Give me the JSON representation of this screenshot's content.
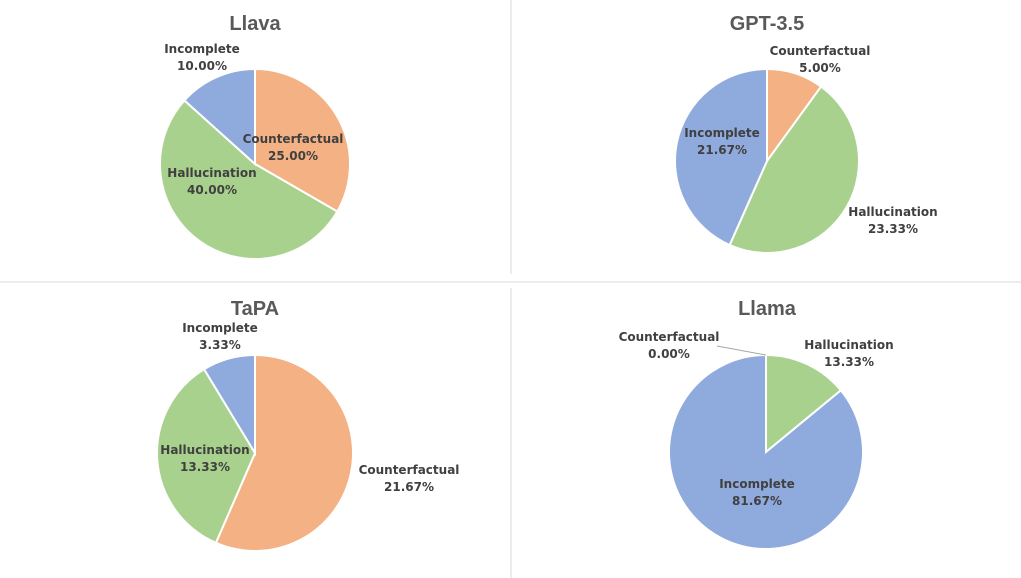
{
  "colors": {
    "Counterfactual": "#f4b183",
    "Hallucination": "#a9d18e",
    "Incomplete": "#8faadc"
  },
  "chart_data": [
    {
      "type": "pie",
      "title": "Llava",
      "slices": [
        {
          "label": "Counterfactual",
          "value": 25.0,
          "value_text": "25.00%"
        },
        {
          "label": "Hallucination",
          "value": 40.0,
          "value_text": "40.00%"
        },
        {
          "label": "Incomplete",
          "value": 10.0,
          "value_text": "10.00%"
        }
      ]
    },
    {
      "type": "pie",
      "title": "GPT-3.5",
      "slices": [
        {
          "label": "Counterfactual",
          "value": 5.0,
          "value_text": "5.00%"
        },
        {
          "label": "Hallucination",
          "value": 23.33,
          "value_text": "23.33%"
        },
        {
          "label": "Incomplete",
          "value": 21.67,
          "value_text": "21.67%"
        }
      ]
    },
    {
      "type": "pie",
      "title": "TaPA",
      "slices": [
        {
          "label": "Counterfactual",
          "value": 21.67,
          "value_text": "21.67%"
        },
        {
          "label": "Hallucination",
          "value": 13.33,
          "value_text": "13.33%"
        },
        {
          "label": "Incomplete",
          "value": 3.33,
          "value_text": "3.33%"
        }
      ]
    },
    {
      "type": "pie",
      "title": "Llama",
      "slices": [
        {
          "label": "Counterfactual",
          "value": 0.0,
          "value_text": "0.00%"
        },
        {
          "label": "Hallucination",
          "value": 13.33,
          "value_text": "13.33%"
        },
        {
          "label": "Incomplete",
          "value": 81.67,
          "value_text": "81.67%"
        }
      ]
    }
  ]
}
